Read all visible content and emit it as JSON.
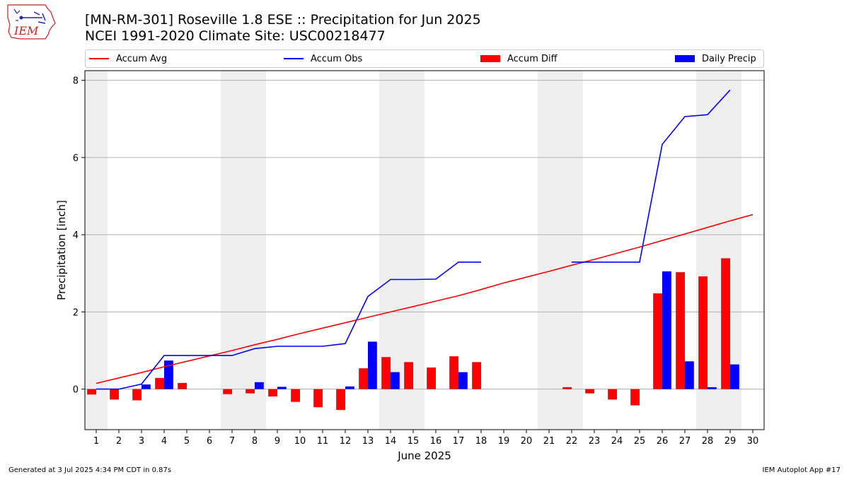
{
  "logo_text": "IEM",
  "title_line1": "[MN-RM-301] Roseville 1.8 ESE :: Precipitation for Jun 2025",
  "title_line2": "NCEI 1991-2020 Climate Site: USC00218477",
  "legend": [
    {
      "label": "Accum Avg",
      "color": "#ff0000",
      "kind": "line"
    },
    {
      "label": "Accum Obs",
      "color": "#0000ff",
      "kind": "line"
    },
    {
      "label": "Accum Diff",
      "color": "#ff0000",
      "kind": "box"
    },
    {
      "label": "Daily Precip",
      "color": "#0000ff",
      "kind": "box"
    }
  ],
  "footer_left": "Generated at 3 Jul 2025 4:34 PM CDT in 0.87s",
  "footer_right": "IEM Autoplot App #17",
  "chart_data": {
    "type": "bar",
    "xlabel": "June 2025",
    "ylabel": "Precipitation [inch]",
    "xlim": [
      0.5,
      30.5
    ],
    "ylim": [
      -1.05,
      8.25
    ],
    "yticks": [
      0,
      2,
      4,
      6,
      8
    ],
    "x": [
      1,
      2,
      3,
      4,
      5,
      6,
      7,
      8,
      9,
      10,
      11,
      12,
      13,
      14,
      15,
      16,
      17,
      18,
      19,
      20,
      21,
      22,
      23,
      24,
      25,
      26,
      27,
      28,
      29,
      30
    ],
    "weekend_shading": [
      [
        0.5,
        1.5
      ],
      [
        6.5,
        8.5
      ],
      [
        13.5,
        15.5
      ],
      [
        20.5,
        22.5
      ],
      [
        27.5,
        29.5
      ]
    ],
    "grid": "horizontal",
    "series": [
      {
        "name": "Accum Avg",
        "type": "line",
        "color": "#ff0000",
        "values": [
          0.15,
          0.29,
          0.43,
          0.58,
          0.72,
          0.86,
          1.0,
          1.15,
          1.29,
          1.44,
          1.58,
          1.72,
          1.86,
          2.0,
          2.14,
          2.28,
          2.42,
          2.58,
          2.75,
          2.9,
          3.05,
          3.21,
          3.36,
          3.52,
          3.68,
          3.85,
          4.02,
          4.19,
          4.36,
          4.52
        ]
      },
      {
        "name": "Accum Obs",
        "type": "line",
        "color": "#0000ff",
        "values": [
          0.0,
          0.0,
          0.13,
          0.87,
          0.87,
          0.87,
          0.87,
          1.05,
          1.11,
          1.11,
          1.11,
          1.18,
          2.4,
          2.84,
          2.84,
          2.85,
          3.29,
          3.29,
          null,
          null,
          null,
          3.29,
          3.29,
          3.29,
          3.29,
          6.34,
          7.06,
          7.11,
          7.75,
          null
        ]
      },
      {
        "name": "Accum Diff",
        "type": "bar",
        "color": "#ff0000",
        "values": [
          -0.14,
          -0.27,
          -0.29,
          0.29,
          0.16,
          0.0,
          -0.13,
          -0.11,
          -0.19,
          -0.33,
          -0.47,
          -0.54,
          0.54,
          0.83,
          0.7,
          0.56,
          0.85,
          0.7,
          null,
          null,
          null,
          0.05,
          -0.11,
          -0.27,
          -0.42,
          2.48,
          3.03,
          2.92,
          3.39,
          null
        ]
      },
      {
        "name": "Daily Precip",
        "type": "bar",
        "color": "#0000ff",
        "values": [
          0,
          0,
          0.12,
          0.74,
          0,
          0,
          0,
          0.18,
          0.06,
          0,
          0,
          0.07,
          1.23,
          0.44,
          0,
          0,
          0.44,
          0,
          null,
          null,
          null,
          0,
          0,
          0,
          0,
          3.05,
          0.72,
          0.05,
          0.64,
          null
        ]
      }
    ]
  }
}
